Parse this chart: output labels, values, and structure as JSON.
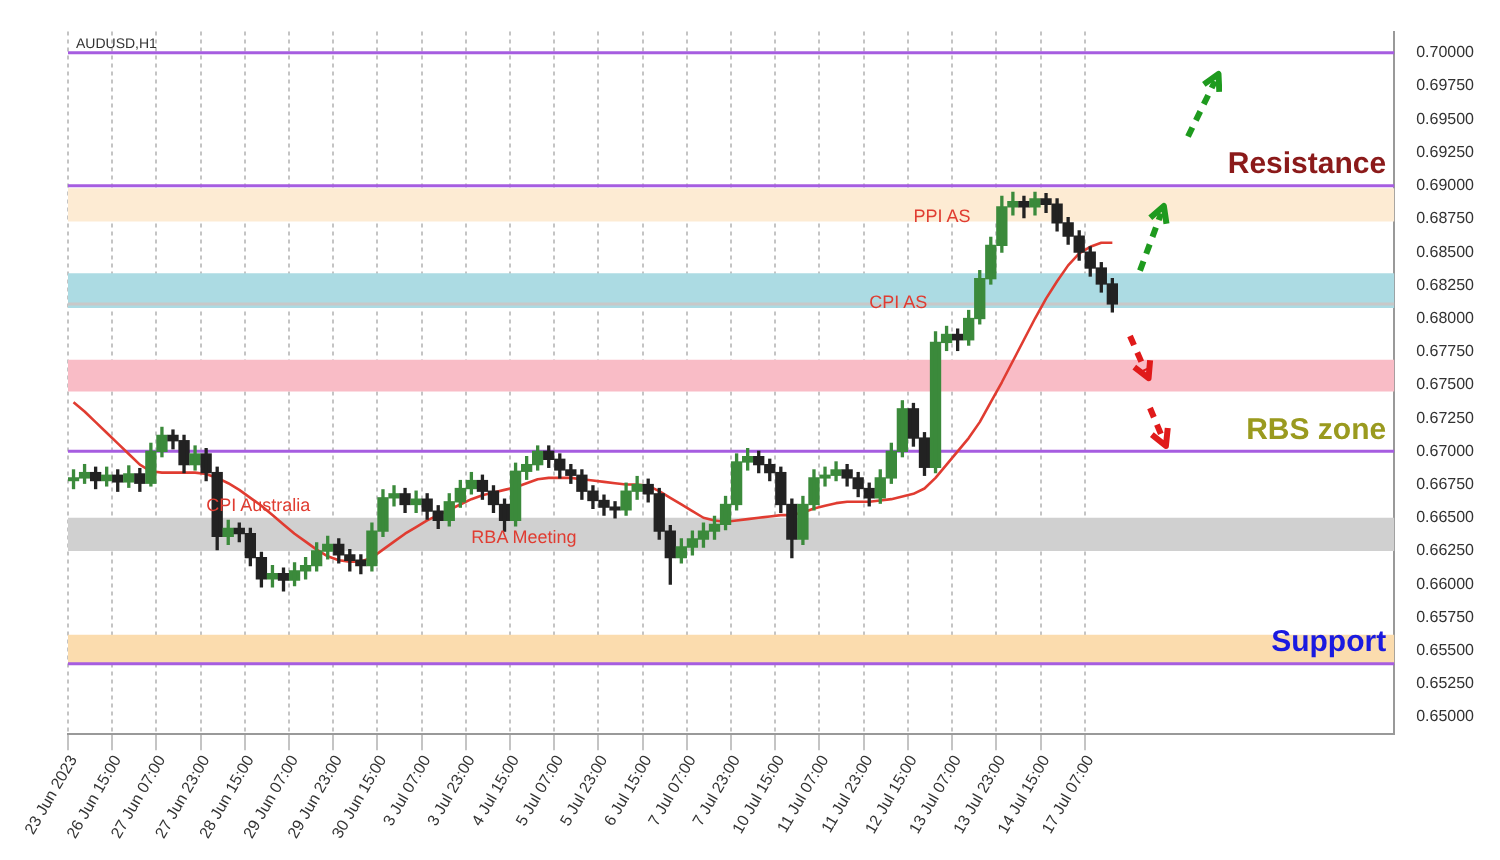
{
  "chart_data": {
    "type": "candlestick",
    "colors": [
      "#3b8a3b",
      "#3b8a3b",
      "#222222",
      "#3b8a3b",
      "#222222",
      "#3b8a3b",
      "#222222",
      "#3b8a3b",
      "#3b8a3b",
      "#222222",
      "#222222",
      "#3b8a3b",
      "#222222",
      "#222222",
      "#3b8a3b",
      "#222222",
      "#222222",
      "#222222",
      "#3b8a3b",
      "#222222",
      "#3b8a3b",
      "#3b8a3b",
      "#3b8a3b",
      "#3b8a3b",
      "#222222",
      "#222222",
      "#222222",
      "#3b8a3b",
      "#3b8a3b",
      "#3b8a3b",
      "#222222",
      "#3b8a3b",
      "#222222",
      "#222222",
      "#3b8a3b",
      "#3b8a3b",
      "#3b8a3b",
      "#222222",
      "#222222",
      "#222222",
      "#3b8a3b",
      "#3b8a3b",
      "#3b8a3b",
      "#222222",
      "#222222",
      "#222222",
      "#222222",
      "#222222",
      "#222222",
      "#222222",
      "#3b8a3b",
      "#3b8a3b",
      "#222222",
      "#222222",
      "#222222",
      "#3b8a3b",
      "#3b8a3b",
      "#3b8a3b",
      "#3b8a3b",
      "#3b8a3b",
      "#3b8a3b",
      "#3b8a3b",
      "#222222",
      "#222222",
      "#222222",
      "#222222",
      "#3b8a3b",
      "#3b8a3b",
      "#3b8a3b",
      "#3b8a3b",
      "#222222",
      "#222222",
      "#222222",
      "#3b8a3b",
      "#3b8a3b",
      "#3b8a3b",
      "#222222",
      "#222222",
      "#3b8a3b",
      "#3b8a3b",
      "#222222",
      "#3b8a3b",
      "#3b8a3b",
      "#3b8a3b",
      "#3b8a3b",
      "#3b8a3b",
      "#222222",
      "#3b8a3b",
      "#222222",
      "#222222",
      "#222222",
      "#222222",
      "#222222",
      "#222222",
      "#222222",
      null,
      null,
      null,
      null,
      null,
      null,
      null,
      null,
      null,
      null,
      null,
      null,
      null,
      null,
      null,
      null,
      null,
      null,
      null,
      null,
      null,
      null,
      null,
      null,
      null
    ],
    "categories": [
      "23 Jun 2023",
      null,
      null,
      null,
      "26 Jun 15:00",
      null,
      null,
      null,
      "27 Jun 07:00",
      null,
      null,
      null,
      "27 Jun 23:00",
      null,
      null,
      null,
      "28 Jun 15:00",
      null,
      null,
      null,
      "29 Jun 07:00",
      null,
      null,
      null,
      "29 Jun 23:00",
      null,
      null,
      null,
      "30 Jun 15:00",
      null,
      null,
      null,
      "3 Jul 07:00",
      null,
      null,
      null,
      "3 Jul 23:00",
      null,
      null,
      null,
      "4 Jul 15:00",
      null,
      null,
      null,
      "5 Jul 07:00",
      null,
      null,
      null,
      "5 Jul 23:00",
      null,
      null,
      null,
      "6 Jul 15:00",
      null,
      null,
      null,
      "7 Jul 07:00",
      null,
      null,
      null,
      "7 Jul 23:00",
      null,
      null,
      null,
      "10 Jul 15:00",
      null,
      null,
      null,
      "11 Jul 07:00",
      null,
      null,
      null,
      "11 Jul 23:00",
      null,
      null,
      null,
      "12 Jul 15:00",
      null,
      null,
      null,
      "13 Jul 07:00",
      null,
      null,
      null,
      "13 Jul 23:00",
      null,
      null,
      null,
      "14 Jul 15:00",
      null,
      null,
      null,
      "17 Jul 07:00",
      null,
      null,
      null,
      null,
      null,
      null,
      null,
      null,
      null,
      null,
      null,
      null,
      null,
      null,
      null,
      null,
      null,
      null,
      null,
      null,
      null,
      null,
      null,
      null,
      null,
      null,
      null
    ],
    "ohlc": [
      [
        0.6678,
        0.6686,
        0.6672,
        0.668
      ],
      [
        0.668,
        0.669,
        0.6676,
        0.6684
      ],
      [
        0.6684,
        0.6688,
        0.6672,
        0.6678
      ],
      [
        0.6678,
        0.6688,
        0.6674,
        0.6682
      ],
      [
        0.6682,
        0.6686,
        0.667,
        0.6677
      ],
      [
        0.6677,
        0.6689,
        0.6673,
        0.6683
      ],
      [
        0.6683,
        0.6687,
        0.667,
        0.6676
      ],
      [
        0.6676,
        0.6706,
        0.6674,
        0.67
      ],
      [
        0.67,
        0.6718,
        0.6696,
        0.6712
      ],
      [
        0.6712,
        0.6716,
        0.6702,
        0.6708
      ],
      [
        0.6708,
        0.6712,
        0.6684,
        0.669
      ],
      [
        0.669,
        0.6704,
        0.6686,
        0.6698
      ],
      [
        0.6698,
        0.6702,
        0.6678,
        0.6684
      ],
      [
        0.6684,
        0.6688,
        0.6626,
        0.6636
      ],
      [
        0.6636,
        0.6648,
        0.663,
        0.6642
      ],
      [
        0.6642,
        0.6646,
        0.6632,
        0.6638
      ],
      [
        0.6638,
        0.6642,
        0.6614,
        0.662
      ],
      [
        0.662,
        0.6624,
        0.6598,
        0.6604
      ],
      [
        0.6604,
        0.6614,
        0.6598,
        0.6608
      ],
      [
        0.6608,
        0.6612,
        0.6595,
        0.6603
      ],
      [
        0.6603,
        0.6616,
        0.6599,
        0.661
      ],
      [
        0.661,
        0.662,
        0.6604,
        0.6614
      ],
      [
        0.6614,
        0.6631,
        0.661,
        0.6625
      ],
      [
        0.6625,
        0.6636,
        0.6619,
        0.663
      ],
      [
        0.663,
        0.6634,
        0.6616,
        0.6622
      ],
      [
        0.6622,
        0.6626,
        0.661,
        0.6618
      ],
      [
        0.6618,
        0.6622,
        0.6608,
        0.6614
      ],
      [
        0.6614,
        0.6646,
        0.661,
        0.664
      ],
      [
        0.664,
        0.6671,
        0.6636,
        0.6665
      ],
      [
        0.6665,
        0.6674,
        0.6659,
        0.6668
      ],
      [
        0.6668,
        0.6672,
        0.6654,
        0.666
      ],
      [
        0.666,
        0.667,
        0.6654,
        0.6664
      ],
      [
        0.6664,
        0.6668,
        0.6649,
        0.6655
      ],
      [
        0.6655,
        0.6659,
        0.6642,
        0.6648
      ],
      [
        0.6648,
        0.6668,
        0.6644,
        0.6662
      ],
      [
        0.6662,
        0.6678,
        0.6658,
        0.6672
      ],
      [
        0.6672,
        0.6684,
        0.6668,
        0.6678
      ],
      [
        0.6678,
        0.6682,
        0.6664,
        0.667
      ],
      [
        0.667,
        0.6674,
        0.6654,
        0.666
      ],
      [
        0.666,
        0.6664,
        0.664,
        0.6648
      ],
      [
        0.6648,
        0.6691,
        0.6644,
        0.6685
      ],
      [
        0.6685,
        0.6696,
        0.6679,
        0.669
      ],
      [
        0.669,
        0.6704,
        0.6686,
        0.67
      ],
      [
        0.67,
        0.6704,
        0.6688,
        0.6694
      ],
      [
        0.6694,
        0.6698,
        0.668,
        0.6686
      ],
      [
        0.6686,
        0.669,
        0.6676,
        0.6682
      ],
      [
        0.6682,
        0.6686,
        0.6664,
        0.667
      ],
      [
        0.667,
        0.6674,
        0.6657,
        0.6663
      ],
      [
        0.6663,
        0.6667,
        0.6652,
        0.6658
      ],
      [
        0.6658,
        0.6662,
        0.665,
        0.6656
      ],
      [
        0.6656,
        0.6676,
        0.6652,
        0.667
      ],
      [
        0.667,
        0.6681,
        0.6664,
        0.6675
      ],
      [
        0.6675,
        0.6679,
        0.6662,
        0.6668
      ],
      [
        0.6668,
        0.6672,
        0.6634,
        0.664
      ],
      [
        0.664,
        0.6644,
        0.66,
        0.662
      ],
      [
        0.662,
        0.6634,
        0.6616,
        0.6628
      ],
      [
        0.6628,
        0.664,
        0.6622,
        0.6634
      ],
      [
        0.6634,
        0.6646,
        0.6628,
        0.664
      ],
      [
        0.664,
        0.6651,
        0.6634,
        0.6645
      ],
      [
        0.6645,
        0.6666,
        0.6641,
        0.666
      ],
      [
        0.666,
        0.6698,
        0.6656,
        0.6692
      ],
      [
        0.6692,
        0.6702,
        0.6686,
        0.6696
      ],
      [
        0.6696,
        0.67,
        0.6684,
        0.669
      ],
      [
        0.669,
        0.6694,
        0.6678,
        0.6684
      ],
      [
        0.6684,
        0.6688,
        0.6654,
        0.666
      ],
      [
        0.666,
        0.6664,
        0.662,
        0.6634
      ],
      [
        0.6634,
        0.6666,
        0.663,
        0.666
      ],
      [
        0.666,
        0.6686,
        0.6656,
        0.668
      ],
      [
        0.668,
        0.6688,
        0.6674,
        0.6682
      ],
      [
        0.6682,
        0.6692,
        0.6678,
        0.6686
      ],
      [
        0.6686,
        0.669,
        0.6674,
        0.668
      ],
      [
        0.668,
        0.6684,
        0.6666,
        0.6672
      ],
      [
        0.6672,
        0.6676,
        0.6659,
        0.6665
      ],
      [
        0.6665,
        0.6686,
        0.6661,
        0.668
      ],
      [
        0.668,
        0.6706,
        0.6676,
        0.67
      ],
      [
        0.67,
        0.6738,
        0.6696,
        0.6732
      ],
      [
        0.6732,
        0.6736,
        0.6704,
        0.671
      ],
      [
        0.671,
        0.6714,
        0.6682,
        0.6688
      ],
      [
        0.6688,
        0.679,
        0.6684,
        0.6782
      ],
      [
        0.6782,
        0.6794,
        0.6776,
        0.6788
      ],
      [
        0.6788,
        0.6792,
        0.6776,
        0.6784
      ],
      [
        0.6784,
        0.6806,
        0.678,
        0.68
      ],
      [
        0.68,
        0.6836,
        0.6796,
        0.683
      ],
      [
        0.683,
        0.6861,
        0.6826,
        0.6855
      ],
      [
        0.6855,
        0.6892,
        0.685,
        0.6884
      ],
      [
        0.6884,
        0.6895,
        0.6878,
        0.6888
      ],
      [
        0.6888,
        0.6892,
        0.6876,
        0.6884
      ],
      [
        0.6884,
        0.6895,
        0.6878,
        0.689
      ],
      [
        0.689,
        0.6894,
        0.688,
        0.6886
      ],
      [
        0.6886,
        0.689,
        0.6866,
        0.6872
      ],
      [
        0.6872,
        0.6876,
        0.6856,
        0.6862
      ],
      [
        0.6862,
        0.6866,
        0.6844,
        0.685
      ],
      [
        0.685,
        0.6854,
        0.6832,
        0.6838
      ],
      [
        0.6838,
        0.6842,
        0.682,
        0.6826
      ],
      [
        0.6826,
        0.683,
        0.6805,
        0.6811
      ],
      null,
      null,
      null,
      null,
      null,
      null,
      null,
      null,
      null,
      null,
      null,
      null,
      null,
      null,
      null,
      null,
      null,
      null,
      null,
      null,
      null,
      null,
      null,
      null,
      null
    ],
    "series": [
      {
        "type": "line",
        "color": "#e03c31",
        "values": [
          0.6737,
          0.673,
          0.6722,
          0.6714,
          0.6706,
          0.6698,
          0.669,
          0.6685,
          0.6684,
          0.6684,
          0.6684,
          0.6684,
          0.6683,
          0.668,
          0.6676,
          0.6671,
          0.6665,
          0.6659,
          0.6652,
          0.6645,
          0.6638,
          0.6632,
          0.6626,
          0.6621,
          0.6618,
          0.6617,
          0.6617,
          0.662,
          0.6626,
          0.6632,
          0.6638,
          0.6643,
          0.6648,
          0.6652,
          0.6656,
          0.666,
          0.6664,
          0.6667,
          0.6669,
          0.6671,
          0.6673,
          0.6676,
          0.6679,
          0.668,
          0.668,
          0.668,
          0.6679,
          0.6678,
          0.6677,
          0.6676,
          0.6675,
          0.6675,
          0.6674,
          0.667,
          0.6665,
          0.666,
          0.6655,
          0.665,
          0.6648,
          0.6647,
          0.6648,
          0.6649,
          0.665,
          0.6651,
          0.6652,
          0.6652,
          0.6654,
          0.6657,
          0.6659,
          0.6661,
          0.6662,
          0.6662,
          0.6662,
          0.6663,
          0.6664,
          0.6666,
          0.6668,
          0.6672,
          0.668,
          0.669,
          0.67,
          0.671,
          0.6722,
          0.6737,
          0.6752,
          0.6768,
          0.6784,
          0.68,
          0.6815,
          0.6828,
          0.684,
          0.6849,
          0.6854,
          0.6857,
          0.6857,
          null,
          null,
          null,
          null,
          null,
          null,
          null,
          null,
          null,
          null,
          null,
          null,
          null,
          null,
          null,
          null,
          null,
          null,
          null,
          null,
          null,
          null,
          null,
          null,
          null
        ]
      }
    ],
    "ylim": [
      0.6487,
      0.7016
    ],
    "yticks": [
      {
        "value": 0.65,
        "label": "0.65000"
      },
      {
        "value": 0.6525,
        "label": "0.65250"
      },
      {
        "value": 0.655,
        "label": "0.65500"
      },
      {
        "value": 0.6575,
        "label": "0.65750"
      },
      {
        "value": 0.66,
        "label": "0.66000"
      },
      {
        "value": 0.6625,
        "label": "0.66250"
      },
      {
        "value": 0.665,
        "label": "0.66500"
      },
      {
        "value": 0.6675,
        "label": "0.66750"
      },
      {
        "value": 0.67,
        "label": "0.67000"
      },
      {
        "value": 0.6725,
        "label": "0.67250"
      },
      {
        "value": 0.675,
        "label": "0.67500"
      },
      {
        "value": 0.6775,
        "label": "0.67750"
      },
      {
        "value": 0.68,
        "label": "0.68000"
      },
      {
        "value": 0.6825,
        "label": "0.68250"
      },
      {
        "value": 0.685,
        "label": "0.68500"
      },
      {
        "value": 0.6875,
        "label": "0.68750"
      },
      {
        "value": 0.69,
        "label": "0.69000"
      },
      {
        "value": 0.6925,
        "label": "0.69250"
      },
      {
        "value": 0.695,
        "label": "0.69500"
      },
      {
        "value": 0.6975,
        "label": "0.69750"
      },
      {
        "value": 0.7,
        "label": "0.70000"
      }
    ],
    "grid": "x",
    "bands": [
      {
        "axis": "y",
        "from": 0.6873,
        "to": 0.6898,
        "color": "#fdebd3"
      },
      {
        "axis": "y",
        "from": 0.6808,
        "to": 0.6834,
        "color": "#acdbe3"
      },
      {
        "axis": "y",
        "from": 0.6745,
        "to": 0.6769,
        "color": "#f9bcc6"
      },
      {
        "axis": "y",
        "from": 0.6625,
        "to": 0.665,
        "color": "#d0d0d0"
      },
      {
        "axis": "y",
        "from": 0.654,
        "to": 0.6562,
        "color": "#fbdcae"
      }
    ],
    "ref_lines": [
      {
        "axis": "y",
        "value": 0.7,
        "color": "#a65de0"
      },
      {
        "axis": "y",
        "value": 0.69,
        "label": "Resistance",
        "color": "#a65de0"
      },
      {
        "axis": "y",
        "value": 0.6811,
        "color": "#c8c8c8"
      },
      {
        "axis": "y",
        "value": 0.67,
        "label": "RBS zone",
        "color": "#a65de0"
      },
      {
        "axis": "y",
        "value": 0.654,
        "label": "Support",
        "color": "#a65de0"
      }
    ],
    "annotations": [
      "AUDUSD,H1",
      {
        "text": "CPI Australia",
        "x": "27 Jun 23:00",
        "y": 0.6655
      },
      {
        "text": "RBA Meeting",
        "x": "3 Jul 23:00",
        "y": 0.6631
      },
      {
        "text": "CPI AS",
        "x": "11 Jul 23:00",
        "y": 0.6808
      },
      {
        "text": "PPI AS",
        "x": "12 Jul 15:00",
        "y": 0.6873
      }
    ]
  }
}
